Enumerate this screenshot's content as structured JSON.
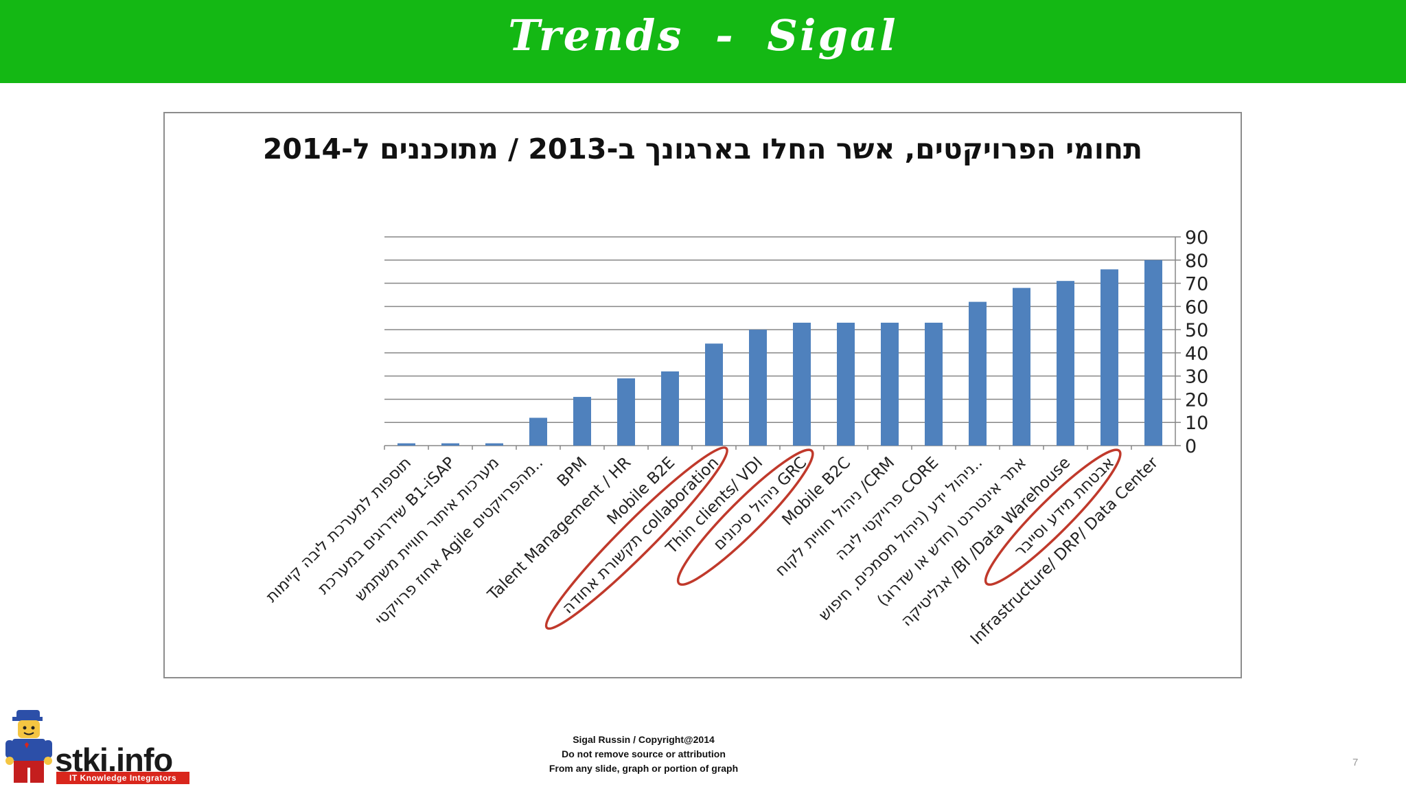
{
  "slide": {
    "title": "Trends - Sigal",
    "page_number": "7",
    "footer": {
      "line1": "Sigal Russin  /  Copyright@2014",
      "line2": "Do not remove source or attribution",
      "line3": "From any slide, graph or portion of graph"
    },
    "logo": {
      "text": "stki.info",
      "tagline": "IT Knowledge Integrators"
    }
  },
  "colors": {
    "banner": "#14b814",
    "bar": "#4f81bd",
    "highlight": "#c0392b",
    "grid": "#868686"
  },
  "chart_data": {
    "type": "bar",
    "title": "תחומי הפרויקטים, אשר החלו בארגונך ב-2013 / מתוכננים ל-2014",
    "xlabel": "",
    "ylabel": "",
    "ylim": [
      0,
      90
    ],
    "y_ticks": [
      0,
      10,
      20,
      30,
      40,
      50,
      60,
      70,
      80,
      90
    ],
    "y_axis_side": "right",
    "grid": true,
    "legend": "none",
    "categories": [
      "תוספות למערכת ליבה קיימות",
      "שידרוגים במערכת B1-iSAP",
      "מערכות איתור חוויית משתמש",
      "אחוז פרויקטי Agile מהפרויקטים..",
      "BPM",
      "Talent Management / HR",
      "Mobile B2E",
      "תקשורת אחודה collaboration",
      "Thin clients/ VDI",
      "ניהול סיכונים GRC",
      "Mobile B2C",
      "ניהול חוויית לקוח /CRM",
      "פרויקטי ליבה CORE",
      "ניהול ידע (ניהול מסמכים, חיפוש..",
      "אתר אינטרנט (חדש או שדרוג)",
      "אנליטיקה /BI /Data Warehouse",
      "אבטחת מידע וסייבר",
      "Infrastructure/ DRP/ Data Center"
    ],
    "values": [
      1,
      1,
      1,
      12,
      21,
      29,
      32,
      44,
      50,
      53,
      53,
      53,
      53,
      62,
      68,
      71,
      76,
      80
    ],
    "highlighted_categories": [
      "תקשורת אחודה collaboration",
      "ניהול סיכונים GRC",
      "אבטחת מידע וסייבר"
    ]
  }
}
